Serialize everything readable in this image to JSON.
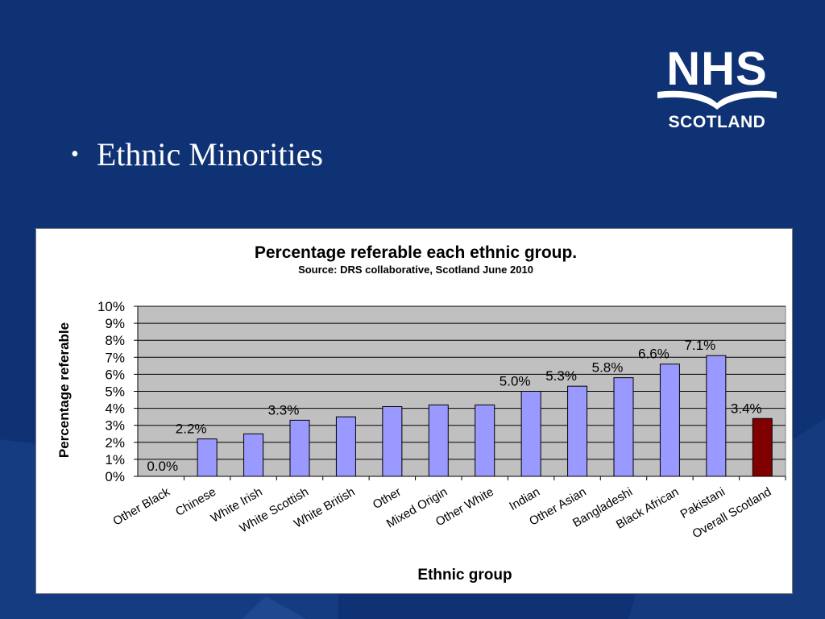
{
  "slide": {
    "bullet": "•",
    "heading": "Ethnic Minorities"
  },
  "logo": {
    "line1": "NHS",
    "line2": "SCOTLAND"
  },
  "colors": {
    "background": "#0f3275",
    "plot_area": "#c0c0c0",
    "bar": "#9999ff",
    "highlight_bar": "#800000",
    "text": "#000000"
  },
  "chart_data": {
    "type": "bar",
    "title": "Percentage referable each ethnic group.",
    "subtitle": "Source: DRS collaborative, Scotland June 2010",
    "xlabel": "Ethnic group",
    "ylabel": "Percentage referable",
    "ylim": [
      0,
      10
    ],
    "yticks": [
      "0%",
      "1%",
      "2%",
      "3%",
      "4%",
      "5%",
      "6%",
      "7%",
      "8%",
      "9%",
      "10%"
    ],
    "grid": true,
    "categories": [
      "Other Black",
      "Chinese",
      "White Irish",
      "White Scottish",
      "White British",
      "Other",
      "Mixed Origin",
      "Other White",
      "Indian",
      "Other Asian",
      "Bangladeshi",
      "Black African",
      "Pakistani",
      "Overall Scotland"
    ],
    "values": [
      0.0,
      2.2,
      2.5,
      3.3,
      3.5,
      4.1,
      4.2,
      4.2,
      5.0,
      5.3,
      5.8,
      6.6,
      7.1,
      3.4
    ],
    "data_labels": [
      "0.0%",
      "2.2%",
      null,
      "3.3%",
      null,
      null,
      null,
      null,
      "5.0%",
      "5.3%",
      "5.8%",
      "6.6%",
      "7.1%",
      "3.4%"
    ],
    "highlight_index": 13
  }
}
